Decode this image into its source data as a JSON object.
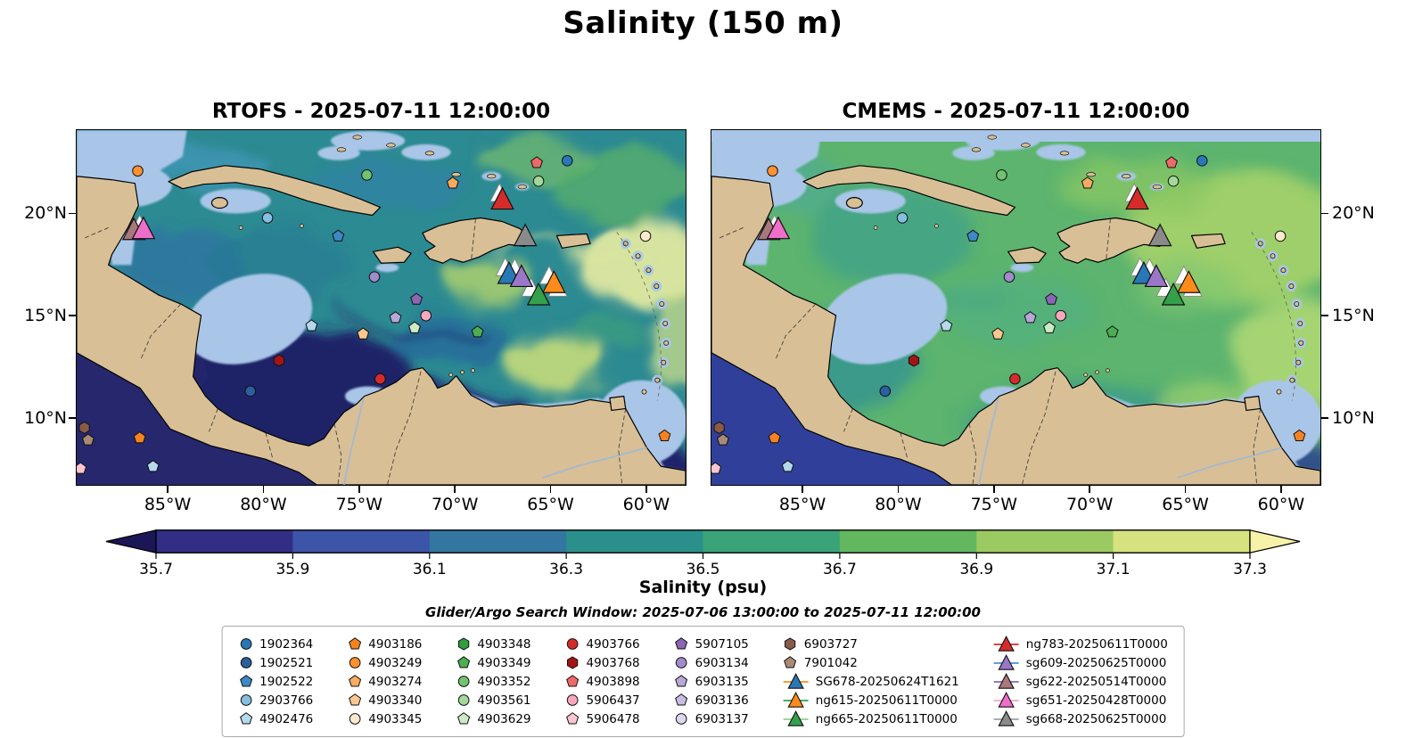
{
  "title": "Salinity (150 m)",
  "panels": [
    {
      "title": "RTOFS - 2025-07-11 12:00:00"
    },
    {
      "title": "CMEMS - 2025-07-11 12:00:00"
    }
  ],
  "axes": {
    "lat_ticks": [
      {
        "label": "20°N",
        "lat": 20
      },
      {
        "label": "15°N",
        "lat": 15
      },
      {
        "label": "10°N",
        "lat": 10
      }
    ],
    "lon_ticks": [
      {
        "label": "85°W",
        "lon": 85
      },
      {
        "label": "80°W",
        "lon": 80
      },
      {
        "label": "75°W",
        "lon": 75
      },
      {
        "label": "70°W",
        "lon": 70
      },
      {
        "label": "65°W",
        "lon": 65
      },
      {
        "label": "60°W",
        "lon": 60
      }
    ]
  },
  "colorbar": {
    "label": "Salinity (psu)",
    "tick_labels": [
      "35.7",
      "35.9",
      "36.1",
      "36.3",
      "36.5",
      "36.7",
      "36.9",
      "37.1",
      "37.3"
    ],
    "segment_colors": [
      "#322e86",
      "#3c55a8",
      "#33769f",
      "#2b8f8c",
      "#3aa379",
      "#63b75f",
      "#9cca62",
      "#d5e27e"
    ],
    "arrow_left_color": "#1b1655",
    "arrow_right_color": "#f6f2a8"
  },
  "search_window": "Glider/Argo Search Window: 2025-07-06 13:00:00 to 2025-07-11 12:00:00",
  "legend": {
    "columns": [
      [
        {
          "label": "1902364",
          "shape": "circle",
          "color": "#2878b8"
        },
        {
          "label": "1902521",
          "shape": "circle",
          "color": "#2b5f9e"
        },
        {
          "label": "1902522",
          "shape": "pentagon",
          "color": "#3d88c8"
        },
        {
          "label": "2903766",
          "shape": "circle",
          "color": "#85bede"
        },
        {
          "label": "4902476",
          "shape": "pentagon",
          "color": "#b5d8ec"
        }
      ],
      [
        {
          "label": "4903186",
          "shape": "pentagon",
          "color": "#f58220"
        },
        {
          "label": "4903249",
          "shape": "circle",
          "color": "#ff9130"
        },
        {
          "label": "4903274",
          "shape": "pentagon",
          "color": "#fbaa5f"
        },
        {
          "label": "4903340",
          "shape": "pentagon",
          "color": "#fdc88e"
        },
        {
          "label": "4903345",
          "shape": "circle",
          "color": "#fde9ce"
        }
      ],
      [
        {
          "label": "4903348",
          "shape": "hexagon",
          "color": "#2e9e3e"
        },
        {
          "label": "4903349",
          "shape": "pentagon",
          "color": "#4cae50"
        },
        {
          "label": "4903352",
          "shape": "circle",
          "color": "#71c370"
        },
        {
          "label": "4903561",
          "shape": "circle",
          "color": "#a2d89a"
        },
        {
          "label": "4903629",
          "shape": "pentagon",
          "color": "#cdeac4"
        }
      ],
      [
        {
          "label": "4903766",
          "shape": "circle",
          "color": "#d62b2b"
        },
        {
          "label": "4903768",
          "shape": "hexagon",
          "color": "#a31515"
        },
        {
          "label": "4903898",
          "shape": "pentagon",
          "color": "#ed6a6a"
        },
        {
          "label": "5906437",
          "shape": "circle",
          "color": "#f8a8bd"
        },
        {
          "label": "5906478",
          "shape": "pentagon",
          "color": "#fbc6cf"
        }
      ],
      [
        {
          "label": "5907105",
          "shape": "pentagon",
          "color": "#8c65b5"
        },
        {
          "label": "6903134",
          "shape": "circle",
          "color": "#a08cc8"
        },
        {
          "label": "6903135",
          "shape": "pentagon",
          "color": "#b7a8d8"
        },
        {
          "label": "6903136",
          "shape": "pentagon",
          "color": "#c9bce2"
        },
        {
          "label": "6903137",
          "shape": "circle",
          "color": "#ded5ee"
        }
      ],
      [
        {
          "label": "6903727",
          "shape": "hexagon",
          "color": "#8a5a48"
        },
        {
          "label": "7901042",
          "shape": "pentagon",
          "color": "#a98a74"
        },
        {
          "label": "SG678-20250624T1621",
          "shape": "triangle",
          "color": "#2878b8",
          "line": "#ff8c1a",
          "glider": true
        },
        {
          "label": "ng615-20250611T0000",
          "shape": "triangle",
          "color": "#ff8c1a",
          "line": "#35a04a",
          "glider": true
        },
        {
          "label": "ng665-20250611T0000",
          "shape": "triangle",
          "color": "#35a04a",
          "line": "#8fd08f",
          "glider": true
        }
      ],
      [
        {
          "label": "ng783-20250611T0000",
          "shape": "triangle",
          "color": "#d62b2b",
          "line": "#d62b2b",
          "glider": true
        },
        {
          "label": "sg609-20250625T0000",
          "shape": "triangle",
          "color": "#9a77c8",
          "line": "#4a90d9",
          "glider": true
        },
        {
          "label": "sg622-20250514T0000",
          "shape": "triangle",
          "color": "#a8787d",
          "line": "#8c65b5",
          "glider": true
        },
        {
          "label": "sg651-20250428T0000",
          "shape": "triangle",
          "color": "#ee6fc8",
          "line": "#f8a8bd",
          "glider": true
        },
        {
          "label": "sg668-20250625T0000",
          "shape": "triangle",
          "color": "#8a8a8a",
          "line": "#9aa0a8",
          "glider": true
        }
      ]
    ]
  },
  "chart_data": {
    "type": "heatmap",
    "title": "Salinity (150 m)",
    "panels": [
      "RTOFS - 2025-07-11 12:00:00",
      "CMEMS - 2025-07-11 12:00:00"
    ],
    "colorbar": {
      "label": "Salinity (psu)",
      "ticks": [
        35.7,
        35.9,
        36.1,
        36.3,
        36.5,
        36.7,
        36.9,
        37.1,
        37.3
      ],
      "vmin": 35.7,
      "vmax": 37.3
    },
    "lon_axis_deg_west": [
      85,
      80,
      75,
      70,
      65,
      60
    ],
    "lat_axis_deg_north": [
      20,
      15,
      10
    ],
    "map_bounds": {
      "lon_west": 89.8,
      "lon_east": 57.9,
      "lat_south": 6.7,
      "lat_north": 24.1
    },
    "platforms": [
      {
        "id": "4903249",
        "shape": "circle",
        "color": "#ff9130",
        "lon": 86.6,
        "lat": 22.1
      },
      {
        "id": "2903766",
        "shape": "circle",
        "color": "#85bede",
        "lon": 79.8,
        "lat": 19.8
      },
      {
        "id": "4903352",
        "shape": "circle",
        "color": "#71c370",
        "lon": 74.6,
        "lat": 21.9
      },
      {
        "id": "4903274",
        "shape": "pentagon",
        "color": "#fbaa5f",
        "lon": 70.1,
        "lat": 21.5
      },
      {
        "id": "4903898",
        "shape": "pentagon",
        "color": "#ed6a6a",
        "lon": 65.7,
        "lat": 22.5
      },
      {
        "id": "1902364",
        "shape": "circle",
        "color": "#2878b8",
        "lon": 64.1,
        "lat": 22.6
      },
      {
        "id": "4903561",
        "shape": "circle",
        "color": "#a2d89a",
        "lon": 65.6,
        "lat": 21.6
      },
      {
        "id": "1902522",
        "shape": "pentagon",
        "color": "#3d88c8",
        "lon": 76.1,
        "lat": 18.9
      },
      {
        "id": "4903345",
        "shape": "circle",
        "color": "#fde9ce",
        "lon": 60.0,
        "lat": 18.9
      },
      {
        "id": "6903134",
        "shape": "circle",
        "color": "#a08cc8",
        "lon": 74.2,
        "lat": 16.9
      },
      {
        "id": "5907105",
        "shape": "pentagon",
        "color": "#8c65b5",
        "lon": 72.0,
        "lat": 15.8
      },
      {
        "id": "5906437",
        "shape": "circle",
        "color": "#f8a8bd",
        "lon": 71.5,
        "lat": 15.0
      },
      {
        "id": "6903135",
        "shape": "pentagon",
        "color": "#b7a8d8",
        "lon": 73.1,
        "lat": 14.9
      },
      {
        "id": "4902476",
        "shape": "pentagon",
        "color": "#b5d8ec",
        "lon": 77.5,
        "lat": 14.5
      },
      {
        "id": "4903340",
        "shape": "pentagon",
        "color": "#fdc88e",
        "lon": 74.8,
        "lat": 14.1
      },
      {
        "id": "4903629",
        "shape": "pentagon",
        "color": "#cdeac4",
        "lon": 72.1,
        "lat": 14.4
      },
      {
        "id": "4903349",
        "shape": "pentagon",
        "color": "#4cae50",
        "lon": 68.8,
        "lat": 14.2
      },
      {
        "id": "4903768",
        "shape": "hexagon",
        "color": "#a31515",
        "lon": 79.2,
        "lat": 12.8
      },
      {
        "id": "4903766",
        "shape": "circle",
        "color": "#d62b2b",
        "lon": 73.9,
        "lat": 11.9
      },
      {
        "id": "1902521",
        "shape": "circle",
        "color": "#2b5f9e",
        "lon": 80.7,
        "lat": 11.3
      },
      {
        "id": "6903727",
        "shape": "hexagon",
        "color": "#8a5a48",
        "lon": 89.4,
        "lat": 9.5
      },
      {
        "id": "7901042",
        "shape": "pentagon",
        "color": "#a98a74",
        "lon": 89.2,
        "lat": 8.9
      },
      {
        "id": "4903186",
        "shape": "pentagon",
        "color": "#f58220",
        "lon": 86.5,
        "lat": 9.0
      },
      {
        "id": "5906478",
        "shape": "pentagon",
        "color": "#fbc6cf",
        "lon": 89.6,
        "lat": 7.5
      },
      {
        "id": "4902476",
        "shape": "pentagon",
        "color": "#b5d8ec",
        "lon": 85.8,
        "lat": 7.6
      },
      {
        "id": "4903186",
        "shape": "pentagon",
        "color": "#f58220",
        "lon": 59.0,
        "lat": 9.1
      },
      {
        "id": "SG678-20250624T1621",
        "shape": "triangle",
        "color": "#2878b8",
        "lon": 67.15,
        "lat": 17.05,
        "glider": true
      },
      {
        "id": "sg609-20250625T0000",
        "shape": "triangle",
        "color": "#9a77c8",
        "lon": 66.5,
        "lat": 16.9,
        "glider": true
      },
      {
        "id": "ng615-20250611T0000",
        "shape": "triangle",
        "color": "#ff8c1a",
        "lon": 64.8,
        "lat": 16.6,
        "glider": true
      },
      {
        "id": "ng665-20250611T0000",
        "shape": "triangle",
        "color": "#35a04a",
        "lon": 65.6,
        "lat": 16.0,
        "glider": true
      },
      {
        "id": "ng783-20250611T0000",
        "shape": "triangle",
        "color": "#d62b2b",
        "lon": 67.5,
        "lat": 20.7,
        "glider": true
      },
      {
        "id": "sg668-20250625T0000",
        "shape": "triangle",
        "color": "#8a8a8a",
        "lon": 66.3,
        "lat": 18.9,
        "glider": true
      },
      {
        "id": "sg622-20250514T0000",
        "shape": "triangle",
        "color": "#a8787d",
        "lon": 86.8,
        "lat": 19.2,
        "glider": true
      },
      {
        "id": "sg651-20250428T0000",
        "shape": "triangle",
        "color": "#ee6fc8",
        "lon": 86.3,
        "lat": 19.25,
        "glider": true
      }
    ],
    "glider_track_ghosts": [
      {
        "lon": 67.65,
        "lat": 21.0
      },
      {
        "lon": 86.5,
        "lat": 19.45
      },
      {
        "lon": 67.35,
        "lat": 17.35
      },
      {
        "lon": 66.85,
        "lat": 17.3
      },
      {
        "lon": 65.05,
        "lat": 16.95
      },
      {
        "lon": 66.0,
        "lat": 16.35
      },
      {
        "lon": 64.6,
        "lat": 16.35
      }
    ]
  }
}
